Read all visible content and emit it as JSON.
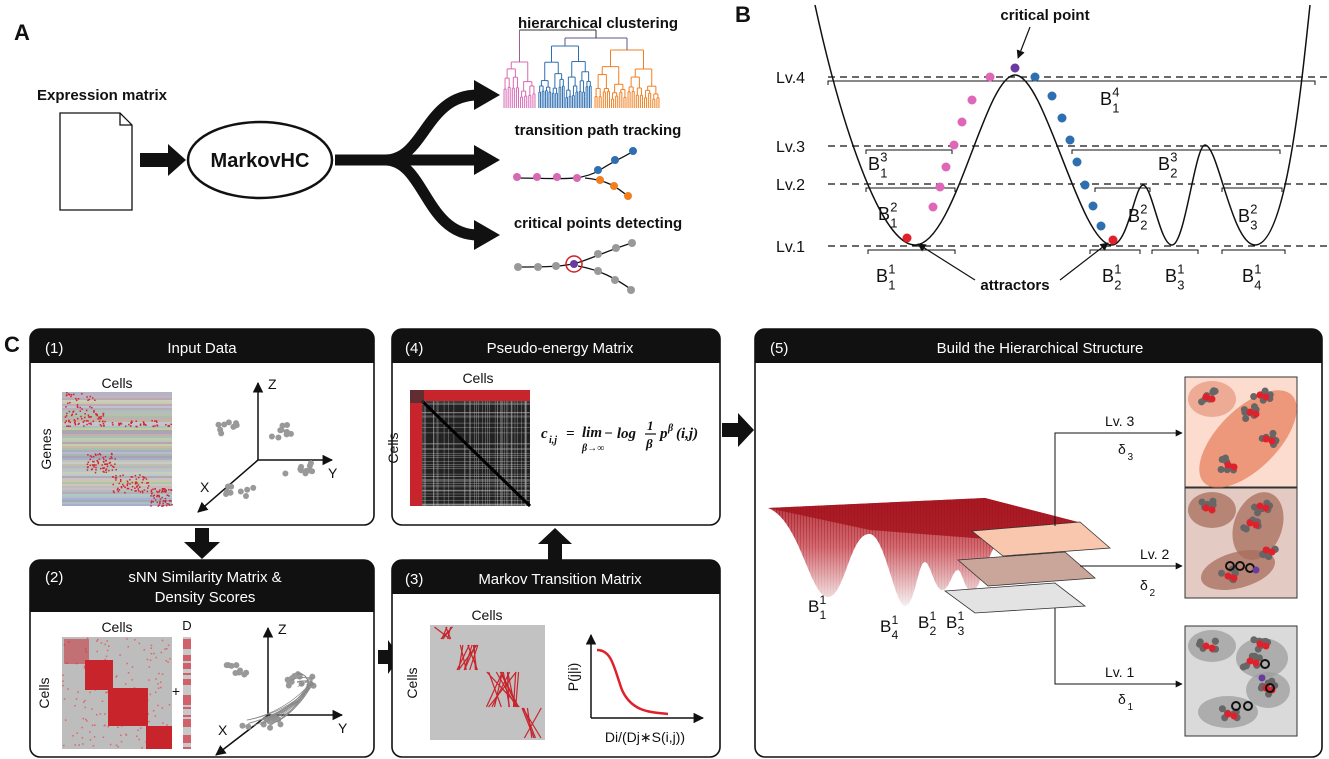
{
  "panel_a": {
    "label": "A",
    "input": "Expression matrix",
    "method": "MarkovHC",
    "outputs": [
      "hierarchical clustering",
      "transition path tracking",
      "critical points detecting"
    ]
  },
  "panel_b": {
    "label": "B",
    "critical_point": "critical point",
    "attractors": "attractors",
    "levels": [
      "Lv.4",
      "Lv.3",
      "Lv.2",
      "Lv.1"
    ],
    "basins": [
      {
        "base": "B",
        "sup": "4",
        "sub": "1"
      },
      {
        "base": "B",
        "sup": "3",
        "sub": "1"
      },
      {
        "base": "B",
        "sup": "3",
        "sub": "2"
      },
      {
        "base": "B",
        "sup": "2",
        "sub": "1"
      },
      {
        "base": "B",
        "sup": "2",
        "sub": "2"
      },
      {
        "base": "B",
        "sup": "2",
        "sub": "3"
      },
      {
        "base": "B",
        "sup": "1",
        "sub": "1"
      },
      {
        "base": "B",
        "sup": "1",
        "sub": "2"
      },
      {
        "base": "B",
        "sup": "1",
        "sub": "3"
      },
      {
        "base": "B",
        "sup": "1",
        "sub": "4"
      }
    ]
  },
  "panel_c": {
    "label": "C",
    "step1": {
      "number": "(1)",
      "title": "Input Data",
      "matrix_columns": "Cells",
      "matrix_rows": "Genes",
      "axes": [
        "Z",
        "Y",
        "X"
      ]
    },
    "step2": {
      "number": "(2)",
      "title": [
        "sNN Similarity Matrix &",
        "Density Scores"
      ],
      "matrix_columns": "Cells",
      "matrix_rows": "Cells",
      "density": "D",
      "plus": "+",
      "axes": [
        "Z",
        "Y",
        "X"
      ]
    },
    "step3": {
      "number": "(3)",
      "title": "Markov Transition Matrix",
      "matrix_columns": "Cells",
      "matrix_rows": "Cells",
      "y_axis": "P(j|i)",
      "x_axis": "Di/(Dj∗S(i,j))"
    },
    "step4": {
      "number": "(4)",
      "title": "Pseudo-energy Matrix",
      "matrix_columns": "Cells",
      "matrix_rows": "Cells",
      "formula": {
        "lhs": "c",
        "lhs_sub": "i,j",
        "equals": "=",
        "lim": "lim",
        "lim_sub": "β→∞",
        "minus_log": "− log",
        "frac_num": "1",
        "frac_den": "β",
        "p": "p",
        "p_sup": "β",
        "args": "(i,j)"
      }
    },
    "step5": {
      "number": "(5)",
      "title": "Build the Hierarchical Structure",
      "levels": [
        {
          "label": "Lv. 3",
          "delta": {
            "base": "δ",
            "sub": "3"
          }
        },
        {
          "label": "Lv. 2",
          "delta": {
            "base": "δ",
            "sub": "2"
          }
        },
        {
          "label": "Lv. 1",
          "delta": {
            "base": "δ",
            "sub": "1"
          }
        }
      ],
      "basins": [
        {
          "base": "B",
          "sup": "1",
          "sub": "1"
        },
        {
          "base": "B",
          "sup": "1",
          "sub": "4"
        },
        {
          "base": "B",
          "sup": "1",
          "sub": "2"
        },
        {
          "base": "B",
          "sup": "1",
          "sub": "3"
        }
      ]
    }
  }
}
